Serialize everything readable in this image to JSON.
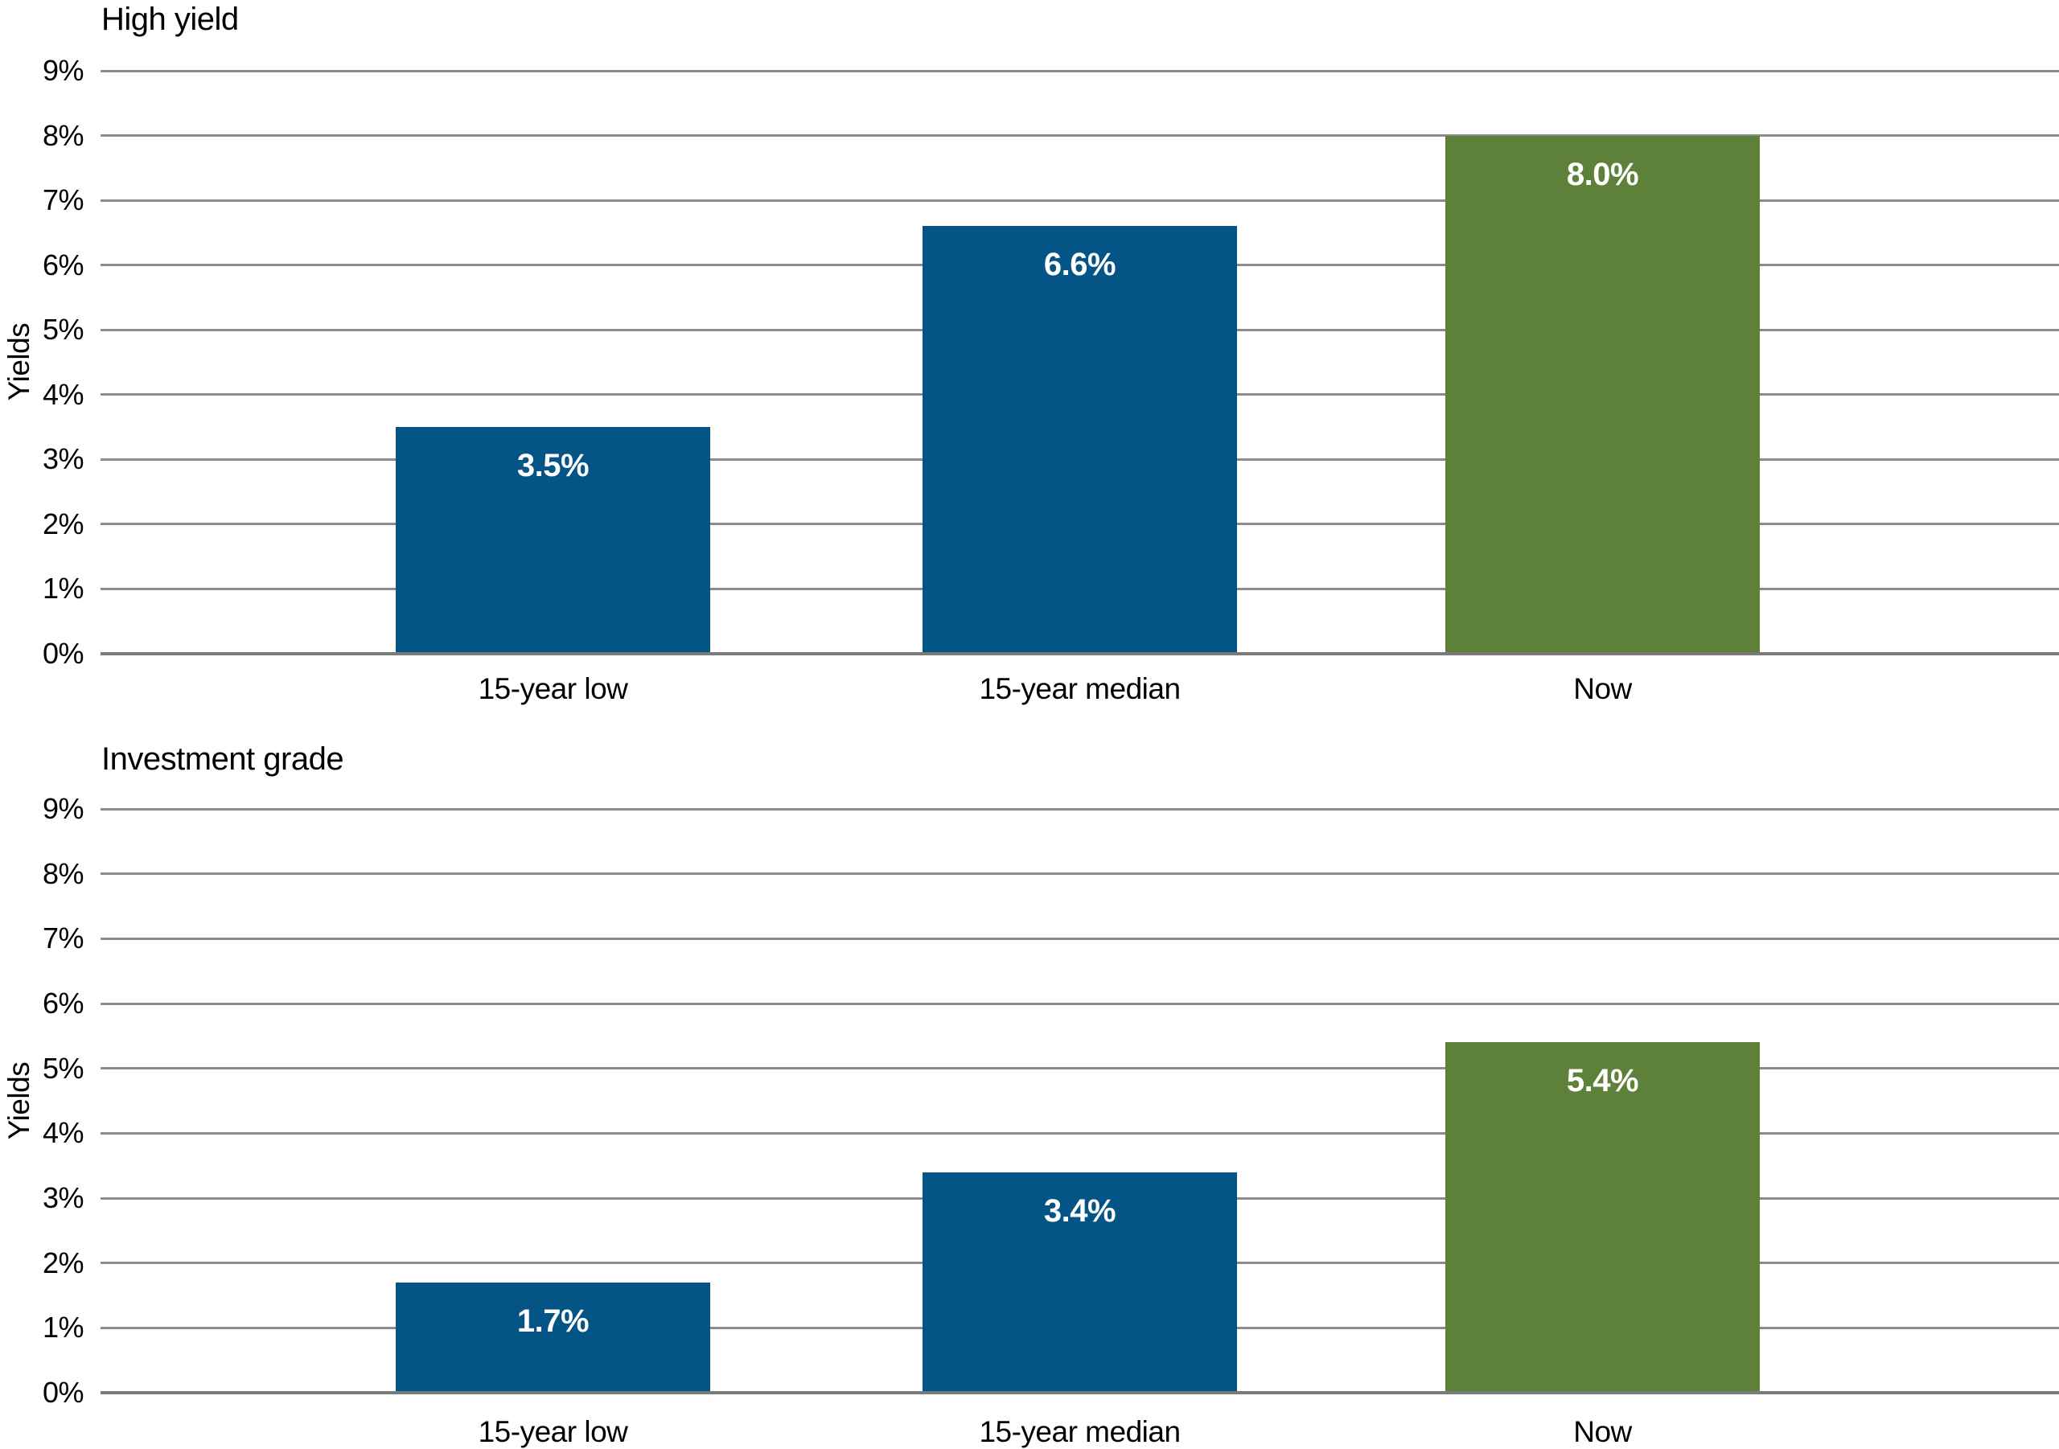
{
  "page": {
    "background": "#ffffff"
  },
  "colors": {
    "bar_blue": "#045586",
    "bar_green": "#5e8139",
    "gridline": "#8c8c8c",
    "axis_line": "#7a7a7a",
    "text": "#000000",
    "value_label_text": "#ffffff"
  },
  "chart_data": [
    {
      "type": "bar",
      "title": "High yield",
      "ylabel": "Yields",
      "categories": [
        "15-year low",
        "15-year median",
        "Now"
      ],
      "values": [
        3.5,
        6.6,
        8.0
      ],
      "value_labels": [
        "3.5%",
        "6.6%",
        "8.0%"
      ],
      "ylim": [
        0,
        9
      ],
      "ytick_labels": [
        "0%",
        "1%",
        "2%",
        "3%",
        "4%",
        "5%",
        "6%",
        "7%",
        "8%",
        "9%"
      ],
      "grid": "horizontal",
      "legend": "none",
      "bar_colors": [
        "#045586",
        "#045586",
        "#5e8139"
      ]
    },
    {
      "type": "bar",
      "title": "Investment grade",
      "ylabel": "Yields",
      "categories": [
        "15-year low",
        "15-year median",
        "Now"
      ],
      "values": [
        1.7,
        3.4,
        5.4
      ],
      "value_labels": [
        "1.7%",
        "3.4%",
        "5.4%"
      ],
      "ylim": [
        0,
        9
      ],
      "ytick_labels": [
        "0%",
        "1%",
        "2%",
        "3%",
        "4%",
        "5%",
        "6%",
        "7%",
        "8%",
        "9%"
      ],
      "grid": "horizontal",
      "legend": "none",
      "bar_colors": [
        "#045586",
        "#045586",
        "#5e8139"
      ]
    }
  ]
}
